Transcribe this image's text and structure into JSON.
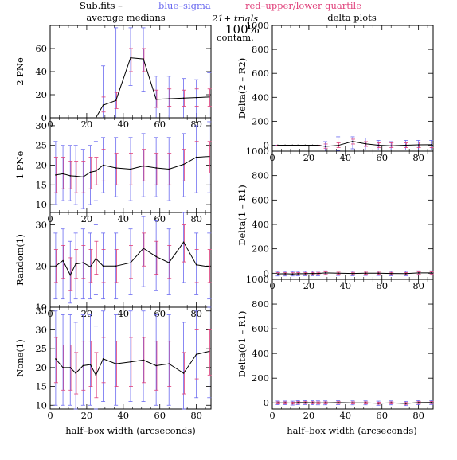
{
  "header": {
    "file": "Sub.fits  –",
    "blue_label": "blue–sigma",
    "red_label": "red–upper/lower quartile",
    "left_title": "average medians",
    "trials": "21+ trials",
    "right_title": "delta plots",
    "contam_pct": "100%",
    "contam_word": "contam."
  },
  "colors": {
    "median": "#000000",
    "sigma": "#6a6af0",
    "quartile": "#e0407a",
    "axis": "#000000"
  },
  "xlabel": "half–box width (arcseconds)",
  "chart_data": [
    {
      "type": "line",
      "panel": "left-1",
      "ylabel": "2 PNe",
      "xlim": [
        0,
        88
      ],
      "ylim": [
        0,
        80
      ],
      "xticks": [
        0,
        20,
        40,
        60,
        80
      ],
      "yticks": [
        0,
        20,
        40,
        60
      ],
      "x": [
        29,
        36,
        44,
        51,
        58,
        65,
        73,
        80,
        87
      ],
      "median": [
        11,
        15,
        52,
        51,
        16,
        16.5,
        17,
        17.5,
        18
      ],
      "sigma_lo": [
        0,
        0,
        28,
        23,
        0,
        0,
        0,
        0,
        0
      ],
      "sigma_hi": [
        45,
        78,
        78,
        78,
        36,
        36,
        34,
        33,
        39
      ],
      "q_lo": [
        5,
        8,
        40,
        40,
        9,
        10,
        10,
        10,
        10
      ],
      "q_hi": [
        18,
        22,
        60,
        60,
        24,
        25,
        24,
        25,
        25
      ]
    },
    {
      "type": "line",
      "panel": "left-2",
      "ylabel": "1 PNe",
      "xlim": [
        0,
        88
      ],
      "ylim": [
        8,
        32
      ],
      "xticks": [
        0,
        20,
        40,
        60,
        80
      ],
      "yticks": [
        10,
        15,
        20,
        25,
        30
      ],
      "x": [
        3,
        7,
        11,
        14,
        18,
        22,
        25,
        29,
        36,
        44,
        51,
        58,
        65,
        73,
        80,
        87
      ],
      "median": [
        17.5,
        17.8,
        17.3,
        17.2,
        17.0,
        18.2,
        18.5,
        20.0,
        19.3,
        19.0,
        19.8,
        19.3,
        19.0,
        20.2,
        22.0,
        22.2
      ],
      "sigma_lo": [
        10,
        11,
        11,
        10,
        9,
        10,
        11,
        13,
        12,
        11,
        12,
        12,
        11,
        12,
        13,
        13
      ],
      "sigma_hi": [
        26,
        25,
        25,
        25,
        24,
        25,
        26,
        27,
        27,
        27,
        28,
        27,
        27,
        28,
        30,
        31
      ],
      "q_lo": [
        13,
        14,
        14,
        13,
        13,
        14,
        15,
        16,
        15,
        15,
        16,
        15,
        15,
        16,
        18,
        18
      ],
      "q_hi": [
        22,
        22,
        21,
        21,
        21,
        22,
        22,
        24,
        23,
        23,
        24,
        23,
        23,
        24,
        26,
        26
      ]
    },
    {
      "type": "line",
      "panel": "left-3",
      "ylabel": "Random(1)",
      "xlim": [
        0,
        88
      ],
      "ylim": [
        10,
        33
      ],
      "xticks": [
        0,
        20,
        40,
        60,
        80
      ],
      "yticks": [
        10,
        20,
        30
      ],
      "x": [
        3,
        7,
        11,
        14,
        18,
        22,
        25,
        29,
        36,
        44,
        51,
        58,
        65,
        73,
        80,
        87
      ],
      "median": [
        20.0,
        21.3,
        17.8,
        20.5,
        20.8,
        19.8,
        21.8,
        20.0,
        20.0,
        20.8,
        24.3,
        22.3,
        20.8,
        25.8,
        20.3,
        19.8
      ],
      "sigma_lo": [
        12,
        12,
        11,
        12,
        12,
        12,
        13,
        12,
        12,
        13,
        15,
        14,
        13,
        16,
        13,
        12
      ],
      "sigma_hi": [
        28,
        29,
        26,
        28,
        29,
        28,
        30,
        28,
        28,
        29,
        32,
        31,
        29,
        33,
        28,
        28
      ],
      "q_lo": [
        16,
        17,
        14,
        17,
        17,
        16,
        18,
        16,
        16,
        17,
        20,
        18,
        17,
        21,
        16,
        16
      ],
      "q_hi": [
        24,
        25,
        22,
        24,
        25,
        24,
        26,
        24,
        24,
        25,
        28,
        26,
        25,
        30,
        24,
        24
      ]
    },
    {
      "type": "line",
      "panel": "left-4",
      "ylabel": "None(1)",
      "xlim": [
        0,
        88
      ],
      "ylim": [
        9,
        36
      ],
      "xticks": [
        0,
        20,
        40,
        60,
        80
      ],
      "yticks": [
        10,
        15,
        20,
        25,
        30,
        35
      ],
      "x": [
        3,
        7,
        11,
        14,
        18,
        22,
        25,
        29,
        36,
        44,
        51,
        58,
        65,
        73,
        80,
        87
      ],
      "median": [
        22.3,
        20.0,
        20.0,
        18.5,
        20.5,
        20.8,
        18.0,
        22.3,
        21.0,
        21.5,
        22.0,
        20.5,
        21.0,
        18.5,
        23.5,
        24.3
      ],
      "sigma_lo": [
        10,
        10,
        10,
        9,
        10,
        10,
        9,
        11,
        10,
        11,
        11,
        10,
        10,
        9,
        12,
        12
      ],
      "sigma_hi": [
        35,
        34,
        34,
        32,
        34,
        34,
        31,
        35,
        34,
        35,
        35,
        34,
        34,
        32,
        35,
        36
      ],
      "q_lo": [
        16,
        14,
        14,
        13,
        14,
        15,
        12,
        16,
        15,
        15,
        16,
        14,
        15,
        13,
        17,
        18
      ],
      "q_hi": [
        28,
        26,
        26,
        24,
        27,
        27,
        24,
        28,
        27,
        28,
        28,
        27,
        27,
        24,
        30,
        30
      ]
    },
    {
      "type": "line",
      "panel": "right-1",
      "ylabel": "Delta(2 – R2)",
      "xlim": [
        0,
        88
      ],
      "ylim": [
        -50,
        1000
      ],
      "xticks": [
        0,
        20,
        40,
        60,
        80
      ],
      "yticks": [
        0,
        200,
        400,
        600,
        800,
        1000
      ],
      "x": [
        3,
        7,
        11,
        14,
        18,
        22,
        25,
        29,
        36,
        44,
        51,
        58,
        65,
        73,
        80,
        87
      ],
      "median": [
        0,
        0,
        0,
        0,
        0,
        0,
        0,
        -10,
        -2,
        32,
        12,
        0,
        -5,
        0,
        3,
        4
      ],
      "sigma_lo": [
        0,
        0,
        0,
        0,
        0,
        0,
        0,
        -55,
        -45,
        -30,
        -40,
        -40,
        -40,
        -40,
        -40,
        -40
      ],
      "sigma_hi": [
        0,
        0,
        0,
        0,
        0,
        0,
        0,
        30,
        70,
        70,
        60,
        40,
        30,
        40,
        40,
        40
      ],
      "q_lo": [
        0,
        0,
        0,
        0,
        0,
        0,
        0,
        -25,
        -20,
        10,
        -10,
        -20,
        -20,
        -20,
        -20,
        -20
      ],
      "q_hi": [
        0,
        0,
        0,
        0,
        0,
        0,
        0,
        10,
        20,
        50,
        30,
        20,
        20,
        20,
        25,
        25
      ]
    },
    {
      "type": "line",
      "panel": "right-2",
      "ylabel": "Delta(1 – R1)",
      "xlim": [
        0,
        88
      ],
      "ylim": [
        -50,
        1000
      ],
      "xticks": [
        0,
        20,
        40,
        60,
        80
      ],
      "yticks": [
        0,
        200,
        400,
        600,
        800,
        1000
      ],
      "x": [
        3,
        7,
        11,
        14,
        18,
        22,
        25,
        29,
        36,
        44,
        51,
        58,
        65,
        73,
        80,
        87
      ],
      "median": [
        -5,
        -4,
        -6,
        -4,
        -3,
        -2,
        -2,
        3,
        0,
        -2,
        0,
        0,
        -2,
        -3,
        3,
        3
      ],
      "sigma_lo": [
        -22,
        -22,
        -22,
        -20,
        -20,
        -20,
        -20,
        -15,
        -18,
        -20,
        -18,
        -18,
        -20,
        -20,
        -15,
        -15
      ],
      "sigma_hi": [
        15,
        15,
        14,
        15,
        15,
        16,
        16,
        20,
        18,
        16,
        18,
        18,
        16,
        15,
        20,
        20
      ],
      "q_lo": [
        -13,
        -12,
        -14,
        -12,
        -11,
        -10,
        -10,
        -6,
        -8,
        -10,
        -8,
        -8,
        -10,
        -11,
        -6,
        -6
      ],
      "q_hi": [
        5,
        5,
        4,
        5,
        6,
        7,
        7,
        12,
        9,
        7,
        9,
        9,
        7,
        6,
        12,
        12
      ]
    },
    {
      "type": "line",
      "panel": "right-3",
      "ylabel": "Delta(01 – R1)",
      "xlim": [
        0,
        88
      ],
      "ylim": [
        -50,
        1000
      ],
      "xticks": [
        0,
        20,
        40,
        60,
        80
      ],
      "yticks": [
        0,
        200,
        400,
        600,
        800,
        1000
      ],
      "x": [
        3,
        7,
        11,
        14,
        18,
        22,
        25,
        29,
        36,
        44,
        51,
        58,
        65,
        73,
        80,
        87
      ],
      "median": [
        0,
        0,
        -2,
        2,
        2,
        1,
        0,
        0,
        2,
        0,
        0,
        -3,
        0,
        -5,
        2,
        3
      ],
      "sigma_lo": [
        -15,
        -15,
        -18,
        -14,
        -14,
        -15,
        -16,
        -16,
        -14,
        -16,
        -16,
        -20,
        -16,
        -22,
        -14,
        -13
      ],
      "sigma_hi": [
        15,
        15,
        14,
        18,
        18,
        17,
        16,
        16,
        18,
        16,
        16,
        14,
        16,
        12,
        18,
        19
      ],
      "q_lo": [
        -8,
        -8,
        -10,
        -6,
        -6,
        -7,
        -8,
        -8,
        -6,
        -8,
        -8,
        -11,
        -8,
        -13,
        -6,
        -5
      ],
      "q_hi": [
        8,
        8,
        6,
        10,
        10,
        9,
        8,
        8,
        10,
        8,
        8,
        5,
        8,
        3,
        10,
        11
      ]
    }
  ]
}
